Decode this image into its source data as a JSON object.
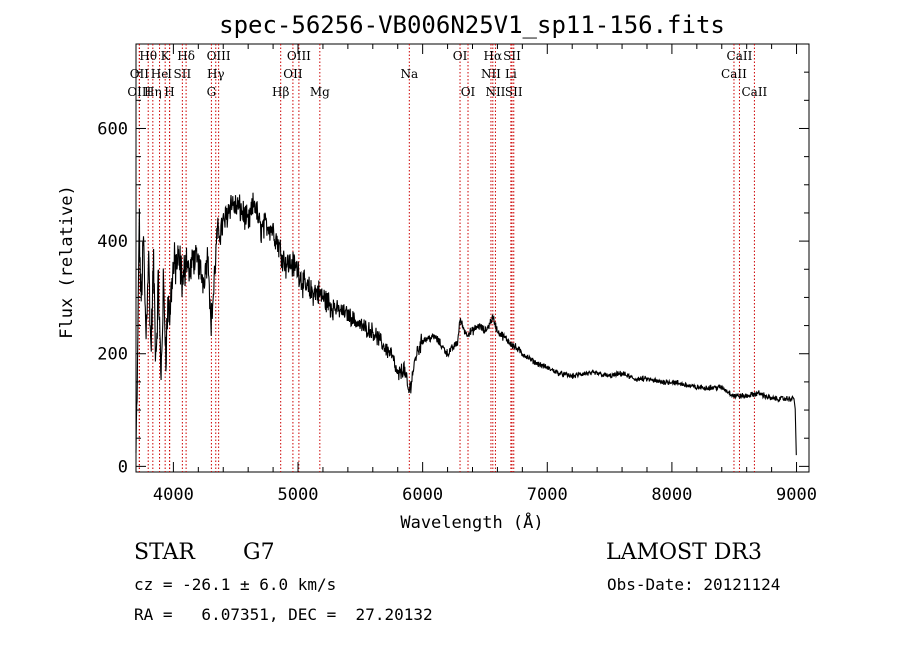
{
  "chart_data": {
    "type": "line",
    "title": "spec-56256-VB006N25V1_sp11-156.fits",
    "xlabel": "Wavelength (Å)",
    "ylabel": "Flux (relative)",
    "xlim": [
      3700,
      9100
    ],
    "ylim": [
      -10,
      750
    ],
    "xticks": [
      4000,
      5000,
      6000,
      7000,
      8000,
      9000
    ],
    "yticks": [
      0,
      200,
      400,
      600
    ],
    "line_color": "#000000",
    "marker_color": "#cc0000",
    "spectrum_anchors": {
      "x": [
        3700,
        3712,
        3725,
        3740,
        3760,
        3780,
        3800,
        3820,
        3840,
        3860,
        3880,
        3900,
        3920,
        3940,
        3960,
        3970,
        3990,
        4020,
        4050,
        4080,
        4100,
        4130,
        4160,
        4200,
        4240,
        4280,
        4300,
        4320,
        4350,
        4380,
        4420,
        4460,
        4500,
        4520,
        4560,
        4600,
        4650,
        4700,
        4750,
        4800,
        4850,
        4900,
        4950,
        5000,
        5050,
        5100,
        5150,
        5200,
        5250,
        5300,
        5400,
        5500,
        5600,
        5700,
        5750,
        5800,
        5850,
        5890,
        5950,
        6000,
        6100,
        6200,
        6280,
        6300,
        6350,
        6400,
        6450,
        6500,
        6530,
        6563,
        6600,
        6650,
        6700,
        6800,
        6900,
        7000,
        7100,
        7200,
        7300,
        7400,
        7500,
        7600,
        7700,
        7800,
        7900,
        8000,
        8100,
        8200,
        8300,
        8400,
        8500,
        8600,
        8700,
        8800,
        8900,
        8980,
        8990,
        9000
      ],
      "y": [
        20,
        160,
        440,
        290,
        400,
        230,
        380,
        200,
        360,
        190,
        330,
        150,
        320,
        210,
        300,
        260,
        340,
        360,
        360,
        320,
        380,
        340,
        370,
        360,
        330,
        380,
        250,
        300,
        410,
        420,
        440,
        470,
        460,
        460,
        450,
        430,
        470,
        420,
        430,
        420,
        390,
        360,
        360,
        350,
        320,
        310,
        310,
        300,
        290,
        280,
        270,
        250,
        240,
        210,
        200,
        160,
        175,
        130,
        200,
        225,
        230,
        200,
        220,
        260,
        235,
        240,
        250,
        240,
        250,
        265,
        240,
        230,
        220,
        200,
        185,
        175,
        165,
        160,
        165,
        165,
        160,
        165,
        155,
        155,
        150,
        150,
        145,
        140,
        140,
        140,
        125,
        125,
        130,
        120,
        120,
        120,
        100,
        0
      ]
    },
    "spectral_lines": [
      {
        "name": "Hθ",
        "wavelength": 3798,
        "row": 0
      },
      {
        "name": "Hη",
        "wavelength": 3835,
        "row": 2
      },
      {
        "name": "OII",
        "wavelength": 3727,
        "row": 1
      },
      {
        "name": "OIII",
        "wavelength": 3727,
        "row": 2
      },
      {
        "name": "He",
        "wavelength": 3889,
        "row": 1
      },
      {
        "name": "K",
        "wavelength": 3934,
        "row": 0
      },
      {
        "name": "H",
        "wavelength": 3969,
        "row": 2
      },
      {
        "name": "I",
        "wavelength": 3970,
        "row": 1
      },
      {
        "name": "Hδ",
        "wavelength": 4102,
        "row": 0
      },
      {
        "name": "SII",
        "wavelength": 4072,
        "row": 1
      },
      {
        "name": "OIII",
        "wavelength": 4363,
        "row": 0
      },
      {
        "name": "Hγ",
        "wavelength": 4340,
        "row": 1
      },
      {
        "name": "G",
        "wavelength": 4305,
        "row": 2
      },
      {
        "name": "Hβ",
        "wavelength": 4861,
        "row": 2
      },
      {
        "name": "OIII",
        "wavelength": 5007,
        "row": 0
      },
      {
        "name": "OII",
        "wavelength": 4959,
        "row": 1
      },
      {
        "name": "Mg",
        "wavelength": 5175,
        "row": 2
      },
      {
        "name": "Na",
        "wavelength": 5893,
        "row": 1
      },
      {
        "name": "OI",
        "wavelength": 6300,
        "row": 0
      },
      {
        "name": "OI",
        "wavelength": 6364,
        "row": 2
      },
      {
        "name": "Hα",
        "wavelength": 6563,
        "row": 0
      },
      {
        "name": "SII",
        "wavelength": 6717,
        "row": 0
      },
      {
        "name": "NII",
        "wavelength": 6548,
        "row": 1
      },
      {
        "name": "Li",
        "wavelength": 6708,
        "row": 1
      },
      {
        "name": "NII",
        "wavelength": 6584,
        "row": 2
      },
      {
        "name": "SII",
        "wavelength": 6731,
        "row": 2
      },
      {
        "name": "CaII",
        "wavelength": 8542,
        "row": 0
      },
      {
        "name": "CaII",
        "wavelength": 8498,
        "row": 1
      },
      {
        "name": "CaII",
        "wavelength": 8662,
        "row": 2
      }
    ]
  },
  "info": {
    "object_class": "STAR",
    "subclass": "G7",
    "survey": "LAMOST DR3",
    "redshift_line": "cz = -26.1 ± 6.0 km/s",
    "obs_date_line": "Obs-Date: 20121124",
    "coords_line": "RA =   6.07351, DEC =  27.20132"
  }
}
